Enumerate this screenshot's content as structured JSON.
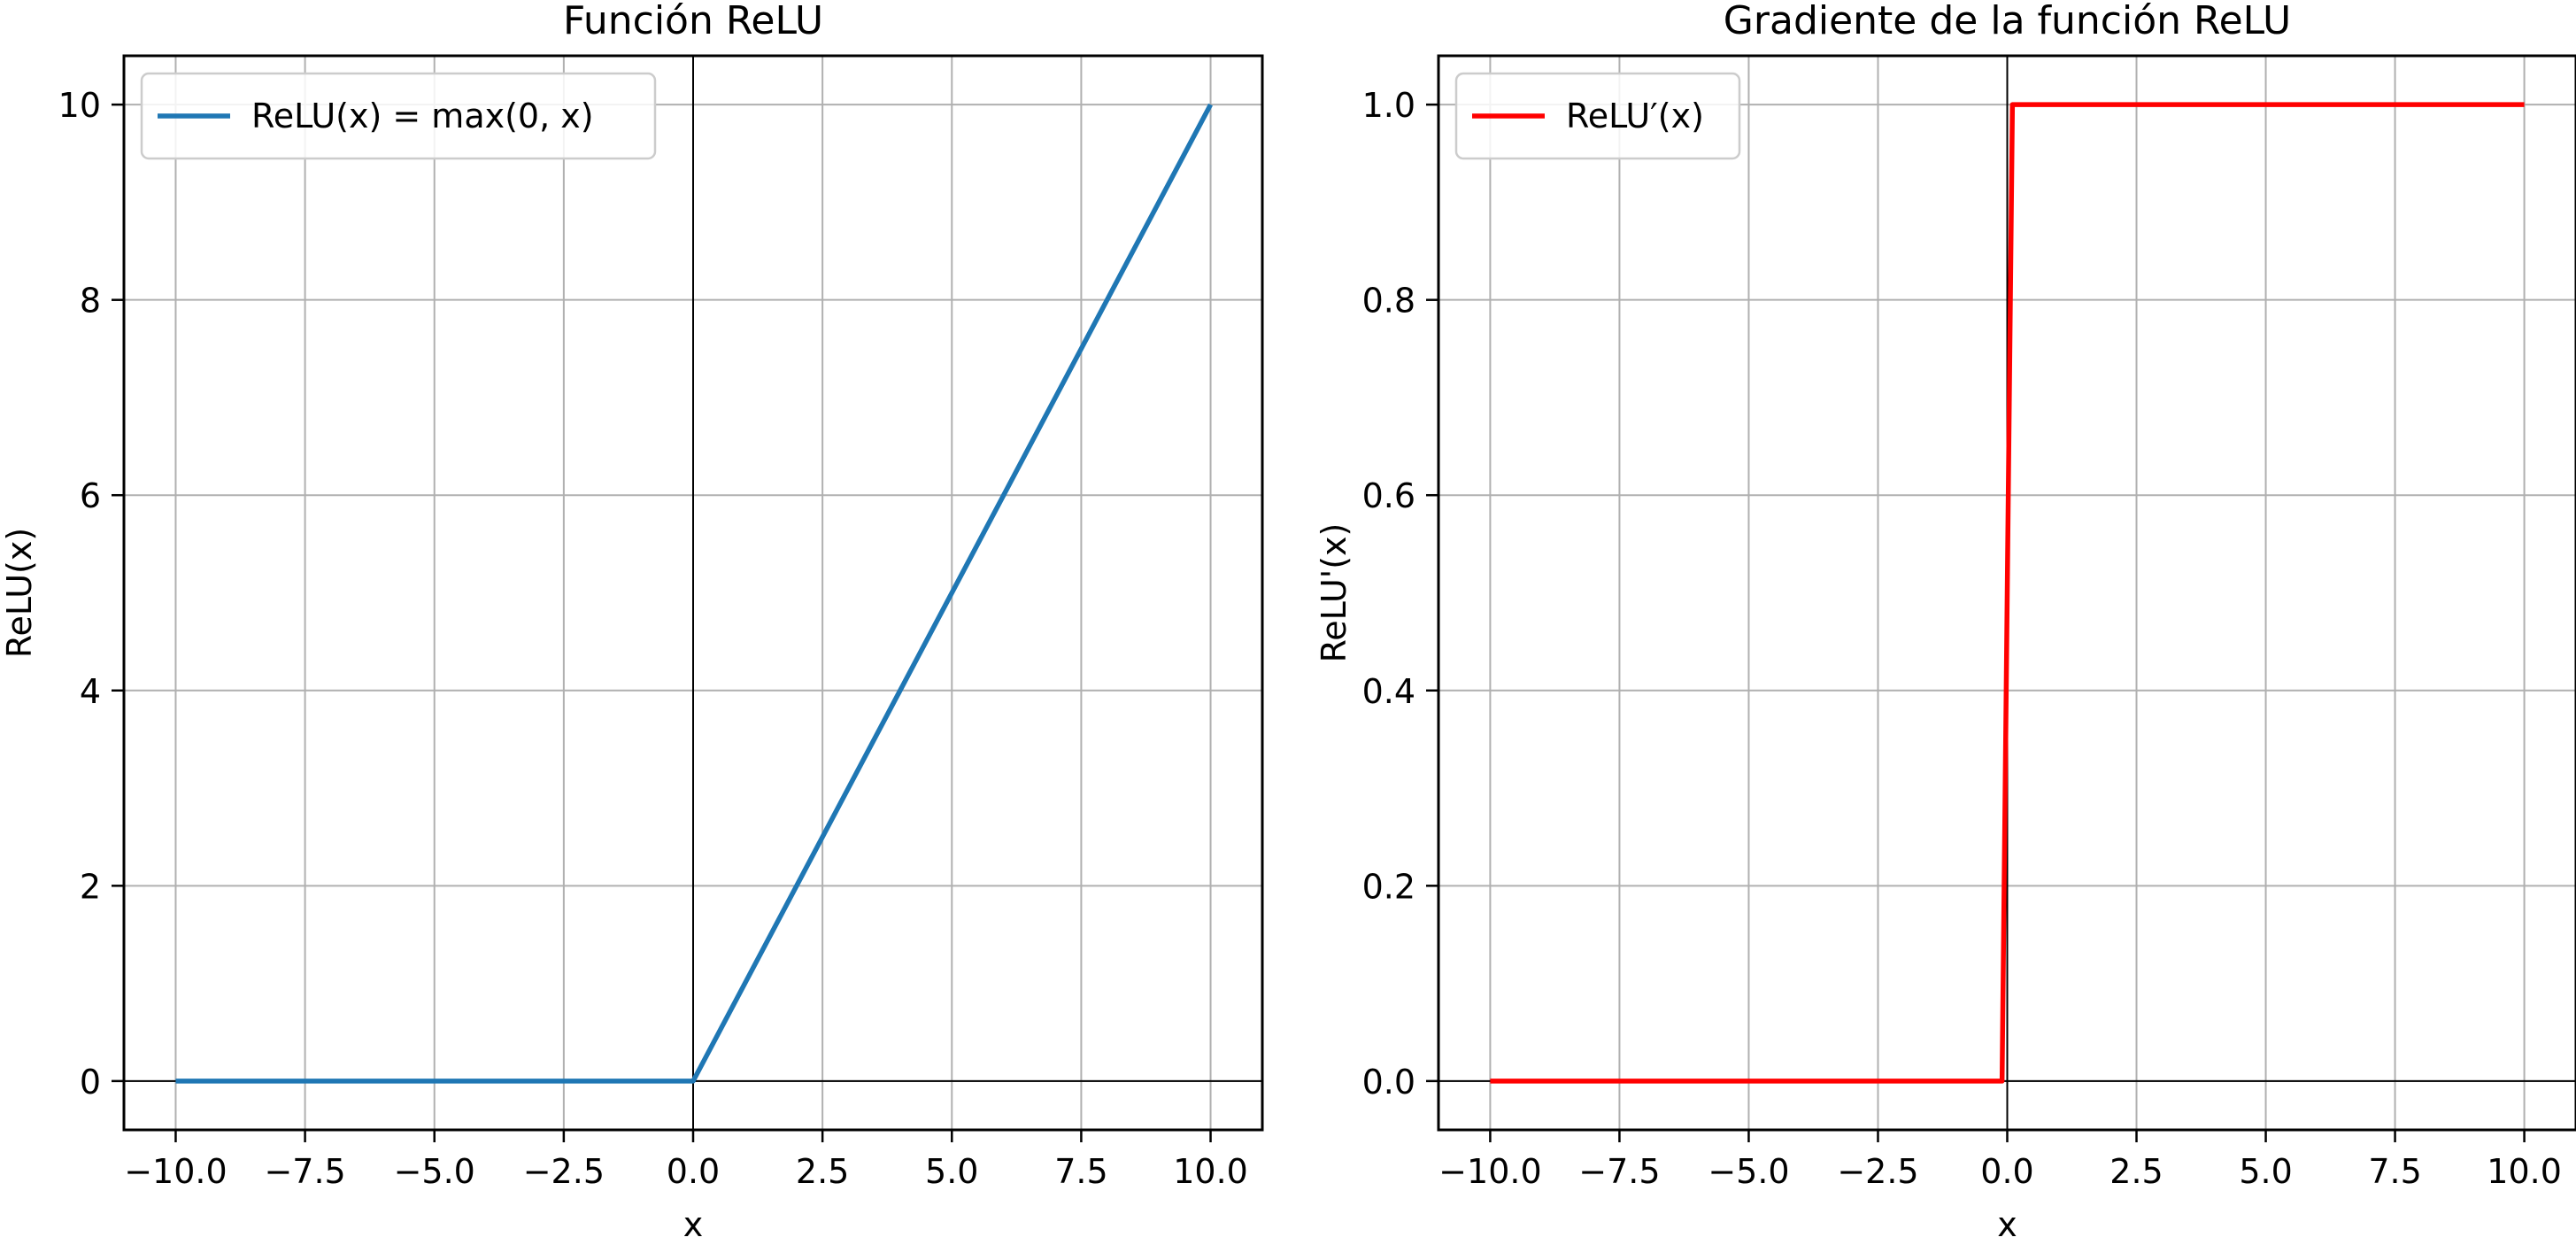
{
  "chart_data": [
    {
      "type": "line",
      "title": "Función ReLU",
      "xlabel": "x",
      "ylabel": "ReLU(x)",
      "xlim": [
        -11,
        11
      ],
      "ylim": [
        -0.5,
        10.5
      ],
      "xticks": [
        -10.0,
        -7.5,
        -5.0,
        -2.5,
        0.0,
        2.5,
        5.0,
        7.5,
        10.0
      ],
      "xtick_labels": [
        "−10.0",
        "−7.5",
        "−5.0",
        "−2.5",
        "0.0",
        "2.5",
        "5.0",
        "7.5",
        "10.0"
      ],
      "yticks": [
        0,
        2,
        4,
        6,
        8,
        10
      ],
      "ytick_labels": [
        "0",
        "2",
        "4",
        "6",
        "8",
        "10"
      ],
      "grid": true,
      "legend_position": "upper-left",
      "axis_lines": {
        "x": 0,
        "y": 0
      },
      "series": [
        {
          "name": "ReLU(x) = max(0, x)",
          "color": "#1f77b4",
          "x": [
            -10,
            0,
            10
          ],
          "y": [
            0,
            0,
            10
          ]
        }
      ]
    },
    {
      "type": "line",
      "title": "Gradiente de la función ReLU",
      "xlabel": "x",
      "ylabel": "ReLU'(x)",
      "xlim": [
        -11,
        11
      ],
      "ylim": [
        -0.05,
        1.05
      ],
      "xticks": [
        -10.0,
        -7.5,
        -5.0,
        -2.5,
        0.0,
        2.5,
        5.0,
        7.5,
        10.0
      ],
      "xtick_labels": [
        "−10.0",
        "−7.5",
        "−5.0",
        "−2.5",
        "0.0",
        "2.5",
        "5.0",
        "7.5",
        "10.0"
      ],
      "yticks": [
        0.0,
        0.2,
        0.4,
        0.6,
        0.8,
        1.0
      ],
      "ytick_labels": [
        "0.0",
        "0.2",
        "0.4",
        "0.6",
        "0.8",
        "1.0"
      ],
      "grid": true,
      "legend_position": "upper-left",
      "axis_lines": {
        "x": 0,
        "y": 0
      },
      "series": [
        {
          "name": "ReLU′(x)",
          "color": "#ff0000",
          "x": [
            -10,
            -0.1,
            0.1,
            10
          ],
          "y": [
            0,
            0,
            1,
            1
          ]
        }
      ]
    }
  ]
}
